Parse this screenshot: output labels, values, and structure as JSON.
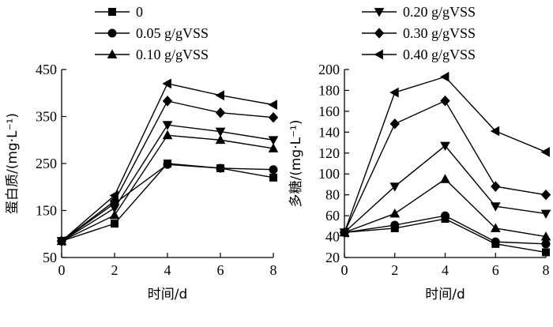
{
  "chart_data": [
    {
      "type": "line",
      "xlabel": "时间/d",
      "ylabel": "蛋白质/(mg·L⁻¹)",
      "x": [
        0,
        2,
        4,
        6,
        8
      ],
      "xlim": [
        0,
        8
      ],
      "xticks": [
        0,
        2,
        4,
        6,
        8
      ],
      "ylim": [
        50,
        450
      ],
      "yticks": [
        50,
        150,
        250,
        350,
        450
      ],
      "grid": false,
      "legend_position": "top",
      "series": [
        {
          "name": "0",
          "marker": "square",
          "values": [
            85,
            122,
            250,
            240,
            220
          ]
        },
        {
          "name": "0.05 g/gVSS",
          "marker": "circle",
          "values": [
            85,
            165,
            248,
            240,
            237
          ]
        },
        {
          "name": "0.10 g/gVSS",
          "marker": "triangle-up",
          "values": [
            85,
            140,
            310,
            300,
            282
          ]
        },
        {
          "name": "0.20 g/gVSS",
          "marker": "triangle-down",
          "values": [
            85,
            155,
            332,
            318,
            300
          ]
        },
        {
          "name": "0.30 g/gVSS",
          "marker": "diamond",
          "values": [
            85,
            170,
            383,
            358,
            348
          ]
        },
        {
          "name": "0.40 g/gVSS",
          "marker": "triangle-left",
          "values": [
            85,
            182,
            420,
            395,
            375
          ]
        }
      ]
    },
    {
      "type": "line",
      "xlabel": "时间/d",
      "ylabel": "多糖/(mg·L⁻¹)",
      "x": [
        0,
        2,
        4,
        6,
        8
      ],
      "xlim": [
        0,
        8
      ],
      "xticks": [
        0,
        2,
        4,
        6,
        8
      ],
      "ylim": [
        20,
        200
      ],
      "yticks": [
        20,
        40,
        60,
        80,
        100,
        120,
        140,
        160,
        180,
        200
      ],
      "grid": false,
      "legend_position": "top",
      "series": [
        {
          "name": "0",
          "marker": "square",
          "values": [
            44,
            48,
            57,
            33,
            25
          ]
        },
        {
          "name": "0.05 g/gVSS",
          "marker": "circle",
          "values": [
            44,
            51,
            60,
            35,
            33
          ]
        },
        {
          "name": "0.10 g/gVSS",
          "marker": "triangle-up",
          "values": [
            44,
            62,
            95,
            48,
            40
          ]
        },
        {
          "name": "0.20 g/gVSS",
          "marker": "triangle-down",
          "values": [
            44,
            88,
            127,
            69,
            62
          ]
        },
        {
          "name": "0.30 g/gVSS",
          "marker": "diamond",
          "values": [
            44,
            148,
            170,
            88,
            80
          ]
        },
        {
          "name": "0.40 g/gVSS",
          "marker": "triangle-left",
          "values": [
            44,
            178,
            193,
            141,
            121
          ]
        }
      ]
    }
  ],
  "legend": {
    "left": [
      "0",
      "0.05 g/gVSS",
      "0.10 g/gVSS"
    ],
    "right": [
      "0.20 g/gVSS",
      "0.30 g/gVSS",
      "0.40 g/gVSS"
    ]
  }
}
